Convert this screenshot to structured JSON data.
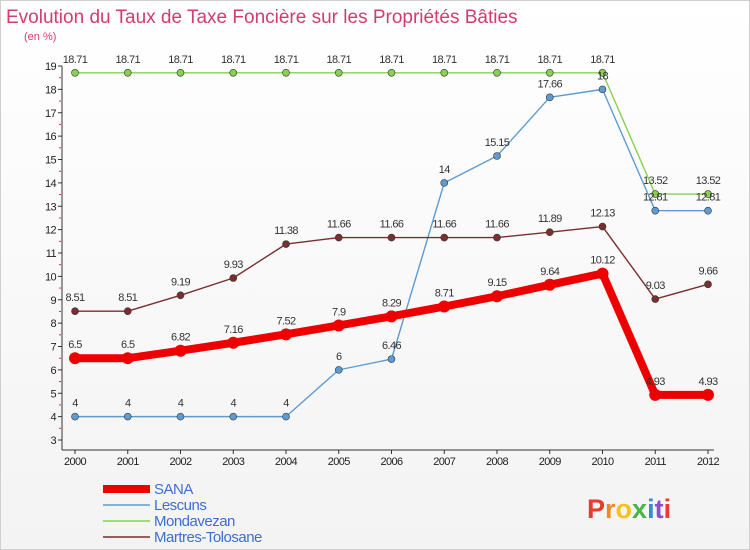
{
  "chart_data": {
    "type": "line",
    "title": "Evolution du Taux de Taxe Foncière sur les Propriétés Bâties",
    "subtitle": "(en %)",
    "categories": [
      "2000",
      "2001",
      "2002",
      "2003",
      "2004",
      "2005",
      "2006",
      "2007",
      "2008",
      "2009",
      "2010",
      "2011",
      "2012"
    ],
    "y_ticks": [
      3,
      4,
      5,
      6,
      7,
      8,
      9,
      10,
      11,
      12,
      13,
      14,
      15,
      16,
      17,
      18,
      19
    ],
    "ylim": [
      3,
      19
    ],
    "grid": false,
    "legend_position": "bottom-left",
    "series": [
      {
        "name": "SANA",
        "color": "#ee0000",
        "values": [
          6.5,
          6.5,
          6.82,
          7.16,
          7.52,
          7.9,
          8.29,
          8.71,
          9.15,
          9.64,
          10.12,
          4.93,
          4.93
        ],
        "labels": [
          "6.5",
          "6.5",
          "6.82",
          "7.16",
          "7.52",
          "7.9",
          "8.29",
          "8.71",
          "9.15",
          "9.64",
          "10.12",
          "4.93",
          "4.93"
        ]
      },
      {
        "name": "Lescuns",
        "color": "#5d9bd1",
        "values": [
          4,
          4,
          4,
          4,
          4,
          6,
          6.46,
          14,
          15.15,
          17.66,
          18,
          12.81,
          12.81
        ],
        "labels": [
          "4",
          "4",
          "4",
          "4",
          "4",
          "6",
          "6.46",
          "14",
          "15.15",
          "17.66",
          "18",
          "12.81",
          "12.81"
        ]
      },
      {
        "name": "Mondavezan",
        "color": "#86d14f",
        "values": [
          18.71,
          18.71,
          18.71,
          18.71,
          18.71,
          18.71,
          18.71,
          18.71,
          18.71,
          18.71,
          18.71,
          13.52,
          13.52
        ],
        "labels": [
          "18.71",
          "18.71",
          "18.71",
          "18.71",
          "18.71",
          "18.71",
          "18.71",
          "18.71",
          "18.71",
          "18.71",
          "18.71",
          "13.52",
          "13.52"
        ]
      },
      {
        "name": "Martres-Tolosane",
        "color": "#7a2e2e",
        "values": [
          8.51,
          8.51,
          9.19,
          9.93,
          11.38,
          11.66,
          11.66,
          11.66,
          11.66,
          11.89,
          12.13,
          9.03,
          9.66
        ],
        "labels": [
          "8.51",
          "8.51",
          "9.19",
          "9.93",
          "11.38",
          "11.66",
          "11.66",
          "11.66",
          "11.66",
          "11.89",
          "12.13",
          "9.03",
          "9.66"
        ]
      }
    ]
  },
  "logo": {
    "text": "Proxiti"
  }
}
